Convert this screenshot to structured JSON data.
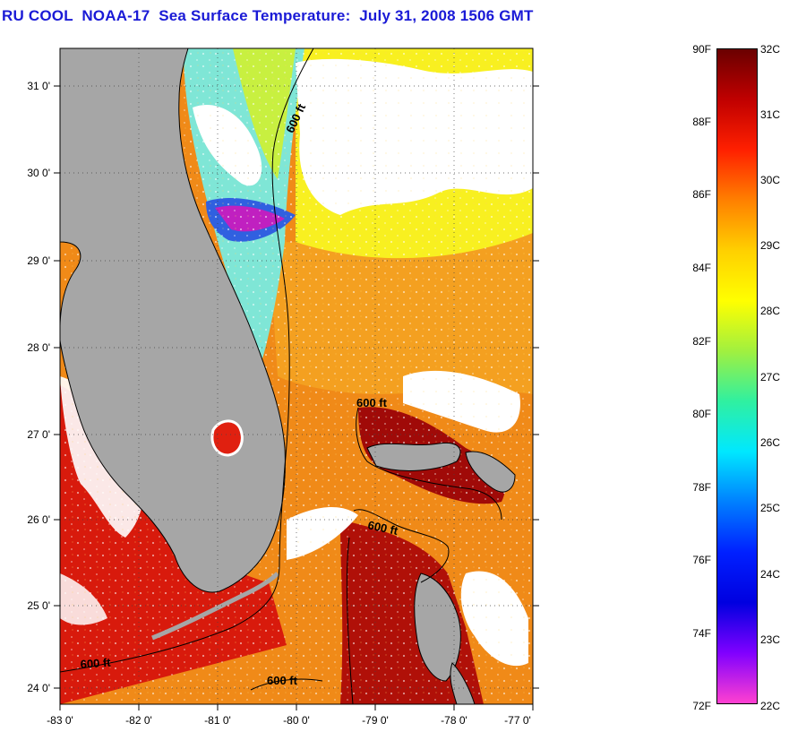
{
  "title": "RU COOL  NOAA-17  Sea Surface Temperature:  July 31, 2008 1506 GMT",
  "map": {
    "lat_ticks": [
      "31 0'",
      "30 0'",
      "29 0'",
      "28 0'",
      "27 0'",
      "26 0'",
      "25 0'",
      "24 0'"
    ],
    "lon_ticks": [
      "-83 0'",
      "-82 0'",
      "-81 0'",
      "-80 0'",
      "-79 0'",
      "-78 0'",
      "-77 0'"
    ],
    "contour_labels": [
      "600 ft",
      "600 ft",
      "600 ft",
      "600 ft",
      "600 ft"
    ],
    "colors": {
      "land": "#a6a6a6",
      "cloud": "#ffffff",
      "cool_water": "#7ee8d8",
      "warm_water": "#f0a020",
      "hot_water": "#c81010",
      "hottest_water": "#9a0808"
    }
  },
  "colorbar": {
    "fahrenheit": [
      "90F",
      "88F",
      "86F",
      "84F",
      "82F",
      "80F",
      "78F",
      "76F",
      "74F",
      "72F"
    ],
    "celsius": [
      "32C",
      "31C",
      "30C",
      "29C",
      "28C",
      "27C",
      "26C",
      "25C",
      "24C",
      "23C",
      "22C"
    ],
    "stops": [
      "#6a0000",
      "#c00000",
      "#ff2000",
      "#ff8000",
      "#ffd000",
      "#ffff00",
      "#a0f040",
      "#30f0a0",
      "#00e8ff",
      "#0080ff",
      "#0020ff",
      "#0000e0",
      "#8000ff",
      "#ff40d0"
    ]
  }
}
